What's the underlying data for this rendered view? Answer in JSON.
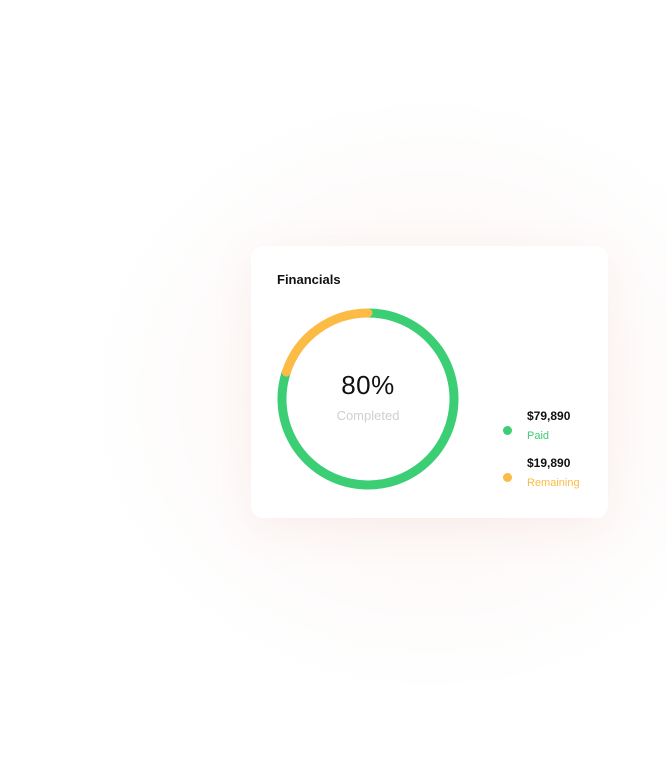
{
  "card": {
    "title": "Financials"
  },
  "chart_data": {
    "type": "pie",
    "title": "Financials",
    "center_value": "80%",
    "center_label": "Completed",
    "series": [
      {
        "name": "Paid",
        "value": 79890,
        "value_label": "$79,890",
        "color": "#3cce74"
      },
      {
        "name": "Remaining",
        "value": 19890,
        "value_label": "$19,890",
        "color": "#fbbb45"
      }
    ],
    "legend_position": "right"
  }
}
